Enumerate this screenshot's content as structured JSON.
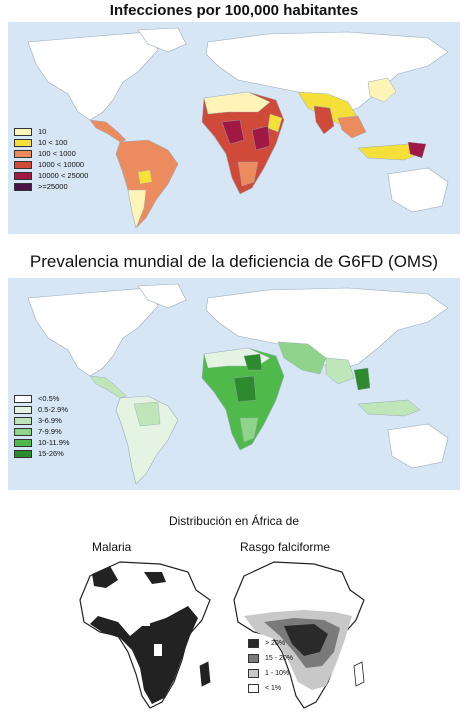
{
  "map1": {
    "title": "Infecciones por 100,000 habitantes",
    "legend": [
      {
        "label": "10",
        "color": "#fff4b8"
      },
      {
        "label": "10 < 100",
        "color": "#f5e03a"
      },
      {
        "label": "100 < 1000",
        "color": "#ec8b5e"
      },
      {
        "label": "1000 < 10000",
        "color": "#d04a3a"
      },
      {
        "label": "10000 < 25000",
        "color": "#a01843"
      },
      {
        "label": ">=25000",
        "color": "#4a1144"
      }
    ]
  },
  "map2": {
    "title": "Prevalencia mundial de la deficiencia de G6FD (OMS)",
    "legend": [
      {
        "label": "<0.5%",
        "color": "#ffffff"
      },
      {
        "label": "0.5-2.9%",
        "color": "#e4f3e2"
      },
      {
        "label": "3-6.9%",
        "color": "#bfe5b8"
      },
      {
        "label": "7-9.9%",
        "color": "#8fd48a"
      },
      {
        "label": "10-11.9%",
        "color": "#4fba4a"
      },
      {
        "label": "15-26%",
        "color": "#2e8a2e"
      }
    ]
  },
  "africa": {
    "title": "Distribución en África de",
    "malaria_label": "Malaria",
    "sickle_label": "Rasgo falciforme",
    "legend": [
      {
        "label": "> 20%",
        "color": "#2a2a2a"
      },
      {
        "label": "15 - 20%",
        "color": "#7a7a7a"
      },
      {
        "label": "1 - 10%",
        "color": "#c8c8c8"
      },
      {
        "label": "< 1%",
        "color": "#ffffff"
      }
    ]
  },
  "colors": {
    "ocean": "#d6e6f5",
    "land": "#ffffff"
  }
}
